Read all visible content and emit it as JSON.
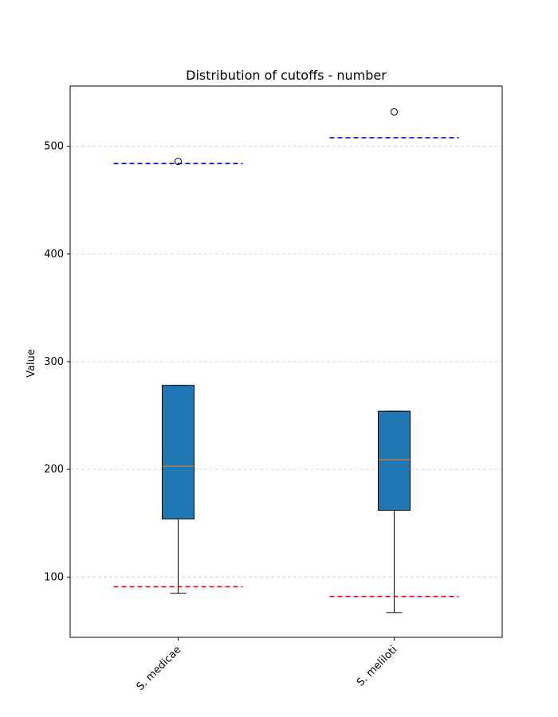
{
  "chart_data": {
    "type": "box",
    "title": "Distribution of cutoffs - number",
    "xlabel": "",
    "ylabel": "Value",
    "ylim": [
      44,
      556
    ],
    "yticks": [
      100,
      200,
      300,
      400,
      500
    ],
    "grid": "horizontal dashed",
    "categories": [
      "S. medicae",
      "S. meliloti"
    ],
    "boxes": [
      {
        "q1": 154,
        "median": 203,
        "q3": 278,
        "whisker_low": 85,
        "whisker_high": 278,
        "outliers": [
          486
        ]
      },
      {
        "q1": 162,
        "median": 209,
        "q3": 254,
        "whisker_low": 67,
        "whisker_high": 254,
        "outliers": [
          532
        ]
      }
    ],
    "upper_lines": [
      484,
      508
    ],
    "lower_lines": [
      91,
      82
    ],
    "colors": {
      "box_fill": "#1f77b4",
      "median": "#ff7f0e",
      "upper_line": "#0000cd",
      "lower_line": "#ff0000",
      "grid": "#cccccc"
    }
  }
}
